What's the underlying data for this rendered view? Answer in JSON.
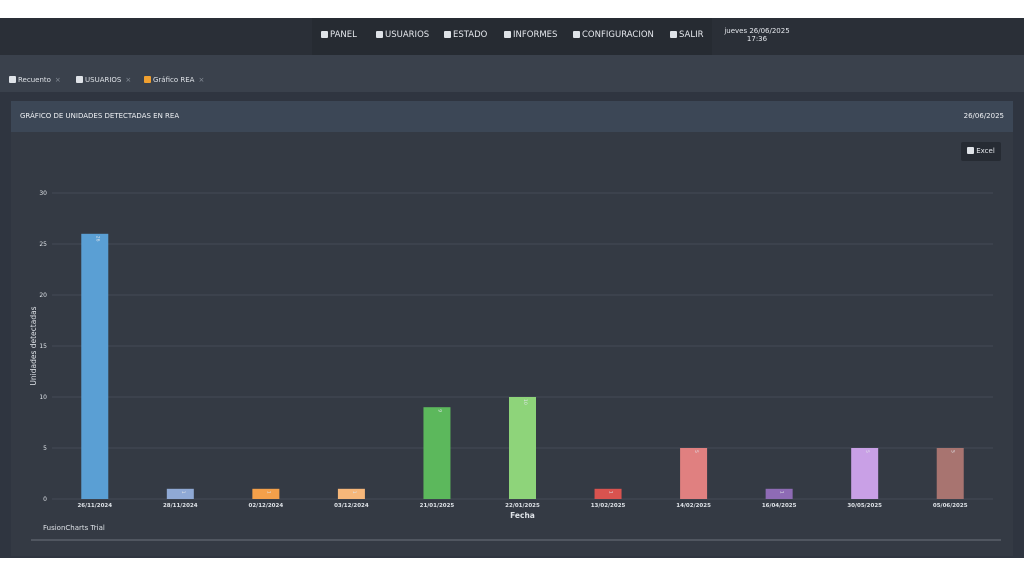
{
  "nav": {
    "items": [
      "PANEL",
      "USUARIOS",
      "ESTADO",
      "INFORMES",
      "CONFIGURACION",
      "SALIR"
    ],
    "datetime": [
      "jueves 26/06/2025",
      "17:36"
    ]
  },
  "tabs": [
    "Recuento",
    "USUARIOS",
    "Gráfico REA"
  ],
  "panel": {
    "title": "GRÁFICO DE UNIDADES DETECTADAS EN REA",
    "date": "26/06/2025",
    "button": "Excel"
  },
  "chart_data": {
    "type": "bar",
    "x_label": "Fecha",
    "y_label": "Unidades detectadas",
    "categories": [
      "26/11/2024",
      "28/11/2024",
      "02/12/2024",
      "03/12/2024",
      "21/01/2025",
      "22/01/2025",
      "13/02/2025",
      "14/02/2025",
      "16/04/2025",
      "30/05/2025",
      "05/06/2025"
    ],
    "values": [
      26,
      1,
      1,
      1,
      9,
      10,
      1,
      5,
      1,
      5,
      5
    ],
    "colors": [
      "#5a9fd4",
      "#8fa9d5",
      "#f4a04a",
      "#f6b77a",
      "#5cb85c",
      "#8ed47a",
      "#d9534f",
      "#e08080",
      "#8e6bb5",
      "#c9a0e6",
      "#a87470"
    ],
    "ylim": [
      0,
      30
    ],
    "yticks": [
      0,
      5,
      10,
      15,
      20,
      25,
      30
    ],
    "grid": true,
    "value_labels_shown": true,
    "watermark": "FusionCharts Trial"
  }
}
